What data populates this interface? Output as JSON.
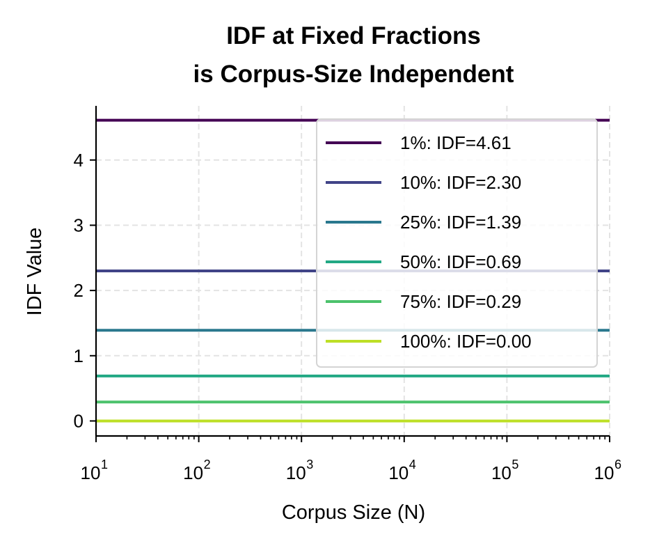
{
  "chart_data": {
    "type": "line",
    "title": "IDF at Fixed Fractions\nis Corpus-Size Independent",
    "xlabel": "Corpus Size (N)",
    "ylabel": "IDF Value",
    "x_scale": "log",
    "xlim": [
      10,
      1000000
    ],
    "ylim": [
      -0.23,
      4.83
    ],
    "x_ticks": [
      {
        "base": "10",
        "exp": "1",
        "value": 10
      },
      {
        "base": "10",
        "exp": "2",
        "value": 100
      },
      {
        "base": "10",
        "exp": "3",
        "value": 1000
      },
      {
        "base": "10",
        "exp": "4",
        "value": 10000
      },
      {
        "base": "10",
        "exp": "5",
        "value": 100000
      },
      {
        "base": "10",
        "exp": "6",
        "value": 1000000
      }
    ],
    "y_ticks": [
      "0",
      "1",
      "2",
      "3",
      "4"
    ],
    "grid": true,
    "legend_position": "upper right",
    "series": [
      {
        "name": "1%: IDF=4.61",
        "color": "#440154",
        "x": [
          10,
          1000000
        ],
        "y": [
          4.61,
          4.61
        ]
      },
      {
        "name": "10%: IDF=2.30",
        "color": "#414487",
        "x": [
          10,
          1000000
        ],
        "y": [
          2.3,
          2.3
        ]
      },
      {
        "name": "25%: IDF=1.39",
        "color": "#2a788e",
        "x": [
          10,
          1000000
        ],
        "y": [
          1.39,
          1.39
        ]
      },
      {
        "name": "50%: IDF=0.69",
        "color": "#22a884",
        "x": [
          10,
          1000000
        ],
        "y": [
          0.69,
          0.69
        ]
      },
      {
        "name": "75%: IDF=0.29",
        "color": "#4cc26c",
        "x": [
          10,
          1000000
        ],
        "y": [
          0.29,
          0.29
        ]
      },
      {
        "name": "100%: IDF=0.00",
        "color": "#bddf26",
        "x": [
          10,
          1000000
        ],
        "y": [
          0.0,
          0.0
        ]
      }
    ]
  }
}
